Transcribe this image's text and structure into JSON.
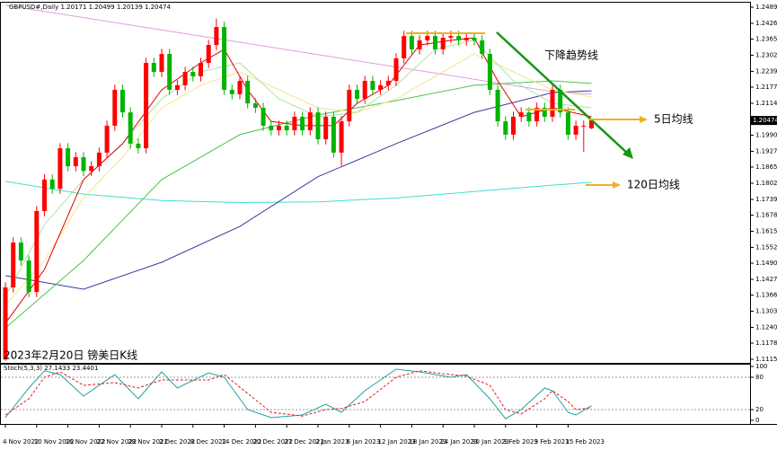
{
  "chart_data": [
    {
      "type": "candlestick",
      "title": "GBPUSD#,Daily",
      "up_color": "#ff0000",
      "down_color": "#00b400",
      "categories": [
        "4 Nov 2022",
        null,
        null,
        null,
        "10 Nov 2022",
        null,
        null,
        null,
        "16 Nov 2022",
        null,
        null,
        null,
        "22 Nov 2022",
        null,
        null,
        null,
        "28 Nov 2022",
        null,
        null,
        null,
        "2 Dec 2022",
        null,
        null,
        null,
        "8 Dec 2022",
        null,
        null,
        null,
        "14 Dec 2022",
        null,
        null,
        null,
        "20 Dec 2022",
        null,
        null,
        null,
        "27 Dec 2022",
        null,
        null,
        null,
        "2 Jan 2023",
        null,
        null,
        null,
        "6 Jan 2023",
        null,
        null,
        null,
        "12 Jan 2023",
        null,
        null,
        null,
        "18 Jan 2023",
        null,
        null,
        null,
        "24 Jan 2023",
        null,
        null,
        null,
        "30 Jan 2023",
        null,
        null,
        null,
        "3 Feb 2023",
        null,
        null,
        null,
        "9 Feb 2023",
        null,
        null,
        null,
        "15 Feb 2023",
        null,
        null,
        null
      ],
      "open": [
        1.1115,
        1.1396,
        1.1571,
        1.1501,
        1.1378,
        1.1694,
        1.1817,
        1.1781,
        1.1939,
        1.1869,
        1.1904,
        1.185,
        1.1869,
        1.1922,
        1.2027,
        1.2167,
        1.2079,
        1.1957,
        1.1939,
        1.2272,
        1.2237,
        1.2307,
        1.2167,
        1.2185,
        1.2237,
        1.222,
        1.2272,
        1.2342,
        1.2412,
        1.2167,
        1.215,
        1.2202,
        1.2114,
        1.2097,
        1.2027,
        1.2009,
        1.2027,
        1.2009,
        1.2062,
        1.2009,
        1.2079,
        1.1974,
        1.2062,
        1.1922,
        1.2044,
        1.2167,
        1.2132,
        1.2202,
        1.2167,
        1.2185,
        1.2202,
        1.229,
        1.2377,
        1.2325,
        1.236,
        1.2377,
        1.2325,
        1.237,
        1.2377,
        1.236,
        1.237,
        1.236,
        1.2307,
        1.2167,
        1.2044,
        1.1992,
        1.2062,
        1.2079,
        1.2044,
        1.2097,
        1.2062,
        1.2167,
        1.2079,
        1.1992,
        1.2027,
        1.20171
      ],
      "high": [
        1.1416,
        1.1591,
        1.1591,
        1.1521,
        1.1714,
        1.1837,
        1.1837,
        1.1959,
        1.1959,
        1.1924,
        1.1924,
        1.1889,
        1.1942,
        1.2047,
        1.2187,
        1.2187,
        1.2099,
        1.1977,
        1.2292,
        1.2292,
        1.2327,
        1.2327,
        1.2205,
        1.2257,
        1.2257,
        1.2292,
        1.2362,
        1.2445,
        1.2432,
        1.2187,
        1.2222,
        1.2222,
        1.2134,
        1.2117,
        1.2047,
        1.2047,
        1.2047,
        1.2082,
        1.2082,
        1.2099,
        1.2099,
        1.2082,
        1.2082,
        1.2064,
        1.2187,
        1.2187,
        1.2222,
        1.2222,
        1.2205,
        1.2222,
        1.231,
        1.2397,
        1.2397,
        1.238,
        1.2397,
        1.2397,
        1.239,
        1.2397,
        1.2397,
        1.239,
        1.239,
        1.238,
        1.2327,
        1.2187,
        1.2064,
        1.2082,
        1.2099,
        1.2099,
        1.2117,
        1.2117,
        1.2187,
        1.2187,
        1.2099,
        1.2047,
        1.2047,
        1.20499
      ],
      "low": [
        1.111,
        1.1376,
        1.1481,
        1.1358,
        1.1358,
        1.1674,
        1.1761,
        1.1761,
        1.1849,
        1.1849,
        1.183,
        1.183,
        1.1849,
        1.1902,
        1.2007,
        1.2059,
        1.1937,
        1.1919,
        1.1919,
        1.2217,
        1.2217,
        1.2147,
        1.2147,
        1.2165,
        1.22,
        1.22,
        1.2252,
        1.2322,
        1.2147,
        1.213,
        1.213,
        1.2094,
        1.2077,
        1.2007,
        1.1989,
        1.1989,
        1.1989,
        1.1989,
        1.1989,
        1.1989,
        1.1954,
        1.1954,
        1.1902,
        1.187,
        1.2024,
        1.2112,
        1.2112,
        1.2147,
        1.2147,
        1.2165,
        1.2182,
        1.227,
        1.2305,
        1.2305,
        1.234,
        1.2305,
        1.2305,
        1.235,
        1.234,
        1.234,
        1.234,
        1.2287,
        1.2147,
        1.2024,
        1.1972,
        1.1972,
        1.2042,
        1.2024,
        1.2024,
        1.2042,
        1.2042,
        1.2059,
        1.1972,
        1.1972,
        1.1925,
        1.20139
      ],
      "close": [
        1.1396,
        1.1571,
        1.1501,
        1.1378,
        1.1694,
        1.1817,
        1.1781,
        1.1939,
        1.1869,
        1.1904,
        1.185,
        1.1869,
        1.1922,
        1.2027,
        1.2167,
        1.2079,
        1.1957,
        1.1939,
        1.2272,
        1.2237,
        1.2307,
        1.2167,
        1.2185,
        1.2237,
        1.222,
        1.2272,
        1.2342,
        1.2412,
        1.2167,
        1.215,
        1.2202,
        1.2114,
        1.2097,
        1.2027,
        1.2009,
        1.2027,
        1.2009,
        1.2062,
        1.2009,
        1.2079,
        1.1974,
        1.2062,
        1.1922,
        1.2044,
        1.2167,
        1.2132,
        1.2202,
        1.2167,
        1.2185,
        1.2202,
        1.229,
        1.2377,
        1.2325,
        1.236,
        1.2377,
        1.2325,
        1.237,
        1.2377,
        1.236,
        1.237,
        1.236,
        1.2307,
        1.2167,
        1.2044,
        1.1992,
        1.2062,
        1.2079,
        1.2044,
        1.2097,
        1.2062,
        1.2167,
        1.2079,
        1.1992,
        1.2027,
        1.2027,
        1.20474
      ],
      "lines": [
        {
          "color": "#dda0dd",
          "x": [
            0,
            70,
            75
          ],
          "values": [
            1.2497,
            1.216,
            1.215
          ]
        },
        {
          "color": "#40e0d0",
          "x": [
            0,
            10,
            20,
            30,
            40,
            50,
            60,
            70,
            75
          ],
          "values": [
            1.181,
            1.176,
            1.1735,
            1.1727,
            1.173,
            1.1745,
            1.177,
            1.1795,
            1.1806
          ]
        },
        {
          "color": "#3a3aa0",
          "x": [
            0,
            10,
            20,
            30,
            40,
            50,
            60,
            70,
            75
          ],
          "values": [
            1.1442,
            1.1389,
            1.1494,
            1.1634,
            1.1828,
            1.1957,
            1.2079,
            1.2156,
            1.2163
          ]
        },
        {
          "color": "#4cc24c",
          "x": [
            0,
            10,
            20,
            30,
            40,
            50,
            60,
            70,
            75
          ],
          "values": [
            1.1237,
            1.1501,
            1.1817,
            1.1992,
            1.2069,
            1.2125,
            1.2185,
            1.2202,
            1.2192
          ]
        },
        {
          "color": "#f2e68a",
          "x": [
            0,
            5,
            10,
            15,
            20,
            25,
            30,
            35,
            40,
            45,
            50,
            55,
            60,
            65,
            70,
            75
          ],
          "values": [
            1.1326,
            1.1501,
            1.1746,
            1.1904,
            1.2097,
            1.2185,
            1.2237,
            1.2167,
            1.2097,
            1.2079,
            1.2132,
            1.222,
            1.2307,
            1.2237,
            1.2167,
            1.2139
          ]
        },
        {
          "color": "#a8e6a0",
          "x": [
            0,
            5,
            10,
            15,
            20,
            25,
            30,
            35,
            40,
            45,
            50,
            55,
            60,
            65,
            70,
            75
          ],
          "values": [
            1.1361,
            1.1641,
            1.1817,
            1.1957,
            1.2132,
            1.2237,
            1.2272,
            1.2132,
            1.2062,
            1.2079,
            1.2185,
            1.2325,
            1.236,
            1.2202,
            1.2114,
            1.2097
          ]
        },
        {
          "color": "#e00000",
          "x": [
            0,
            5,
            10,
            15,
            20,
            25,
            28,
            31,
            34,
            38,
            42,
            45,
            49,
            53,
            57,
            60,
            63,
            66,
            70,
            75
          ],
          "values": [
            1.1256,
            1.1466,
            1.1817,
            1.1957,
            1.2167,
            1.2272,
            1.2325,
            1.2167,
            1.2044,
            1.2027,
            1.2027,
            1.2114,
            1.2185,
            1.2342,
            1.236,
            1.237,
            1.2202,
            1.2062,
            1.2097,
            1.2062
          ]
        }
      ],
      "ylim": [
        1.1105,
        1.2507
      ],
      "yticks": [
        1.24895,
        1.24265,
        {
          "value": 1.2365,
          "label": "1.23650"
        },
        {
          "value": 1.2302,
          "label": "1.23020"
        },
        {
          "value": 1.2239,
          "label": "1.22390"
        },
        1.21775,
        1.21145,
        {
          "value": 1.199,
          "label": "1.19900"
        },
        {
          "value": 1.1927,
          "label": "1.19270"
        },
        1.18655,
        1.18025,
        1.17395,
        {
          "value": 1.1678,
          "label": "1.16780"
        },
        {
          "value": 1.1615,
          "label": "1.16150"
        },
        {
          "value": 1.1552,
          "label": "1.15520"
        },
        1.14905,
        1.14275,
        {
          "value": 1.1366,
          "label": "1.13660"
        },
        {
          "value": 1.1303,
          "label": "1.13030"
        },
        {
          "value": 1.124,
          "label": "1.12400"
        },
        1.11785,
        1.11155
      ],
      "annotations": [
        "2023年2月20日 镑美日K线",
        "下降趋势线",
        "5日均线",
        "120日均线"
      ]
    },
    {
      "type": "line",
      "title": "Stoch(5,3,3)",
      "ylim": [
        0,
        100
      ],
      "yticks": [
        0,
        20,
        80,
        100
      ],
      "series": [
        {
          "color": "#20a0a0",
          "x": [
            0,
            3,
            5,
            7,
            10,
            14,
            17,
            20,
            22,
            26,
            28,
            31,
            34,
            38,
            41,
            43,
            46,
            50,
            53,
            57,
            59,
            62,
            64,
            66,
            69,
            70,
            72,
            73,
            75
          ],
          "values": [
            5,
            60,
            92,
            85,
            45,
            85,
            40,
            90,
            60,
            88,
            80,
            20,
            5,
            10,
            30,
            15,
            55,
            95,
            90,
            80,
            85,
            40,
            3,
            20,
            60,
            55,
            15,
            10,
            27.1433
          ]
        },
        {
          "color": "#e02020",
          "dash": true,
          "x": [
            0,
            3,
            5,
            7,
            10,
            14,
            17,
            20,
            22,
            26,
            28,
            31,
            34,
            38,
            41,
            43,
            46,
            50,
            53,
            57,
            59,
            62,
            64,
            66,
            69,
            70,
            72,
            73,
            75
          ],
          "values": [
            10,
            40,
            80,
            90,
            65,
            70,
            60,
            75,
            75,
            75,
            85,
            50,
            15,
            8,
            20,
            22,
            35,
            80,
            92,
            85,
            82,
            65,
            20,
            12,
            40,
            55,
            35,
            20,
            23.4401
          ]
        }
      ]
    }
  ]
}
